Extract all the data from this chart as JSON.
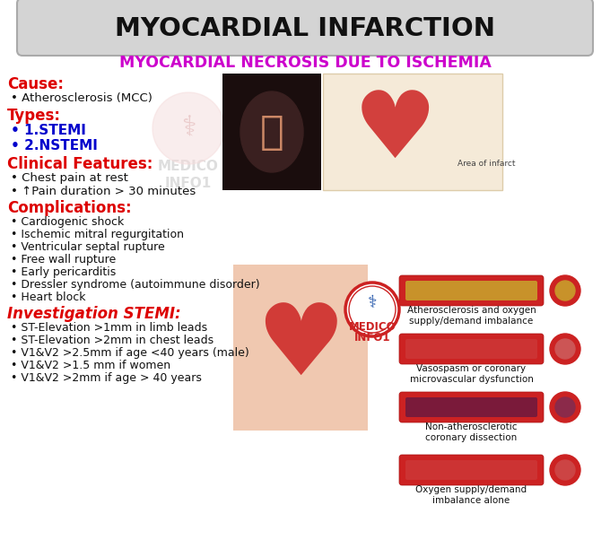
{
  "title": "MYOCARDIAL INFARCTION",
  "subtitle": "MYOCARDIAL NECROSIS DUE TO ISCHEMIA",
  "bg_color": "#ffffff",
  "title_color": "#111111",
  "subtitle_color": "#cc00cc",
  "red_color": "#dd0000",
  "blue_color": "#0000cc",
  "black_color": "#111111",
  "cause_heading": "Cause:",
  "cause_items": [
    "Atherosclerosis (MCC)"
  ],
  "types_heading": "Types:",
  "types_items": [
    "1.STEMI",
    "2.NSTEMI"
  ],
  "clinical_heading": "Clinical Features:",
  "clinical_items": [
    "Chest pain at rest",
    "↑Pain duration > 30 minutes"
  ],
  "complications_heading": "Complications:",
  "complications_items": [
    "Cardiogenic shock",
    "Ischemic mitral regurgitation",
    "Ventricular septal rupture",
    "Free wall rupture",
    "Early pericarditis",
    "Dressler syndrome (autoimmune disorder)",
    "Heart block"
  ],
  "investigation_heading": "Investigation STEMI:",
  "investigation_items": [
    "ST-Elevation >1mm in limb leads",
    "ST-Elevation >2mm in chest leads",
    "V1&V2 >2.5mm if age <40 years (male)",
    "V1&V2 >1.5 mm if women",
    "V1&V2 >2mm if age > 40 years"
  ],
  "vessel_labels": [
    "Atherosclerosis and oxygen\nsupply/demand imbalance",
    "Vasospasm or coronary\nmicrovascular dysfunction",
    "Non-atherosclerotic\ncoronary dissection",
    "Oxygen supply/demand\nimbalance alone"
  ],
  "vessel_inner_colors": [
    "#c8922a",
    "#cc3333",
    "#7a1a3a",
    "#cc3333"
  ],
  "vessel_outer_color": "#cc2222",
  "circle_inner_colors": [
    "#c8922a",
    "#cc5555",
    "#8b2a4a",
    "#cc4444"
  ],
  "watermark": "MEDICO\nINFO1",
  "title_box_color": "#d4d4d4",
  "title_box_edge": "#aaaaaa"
}
